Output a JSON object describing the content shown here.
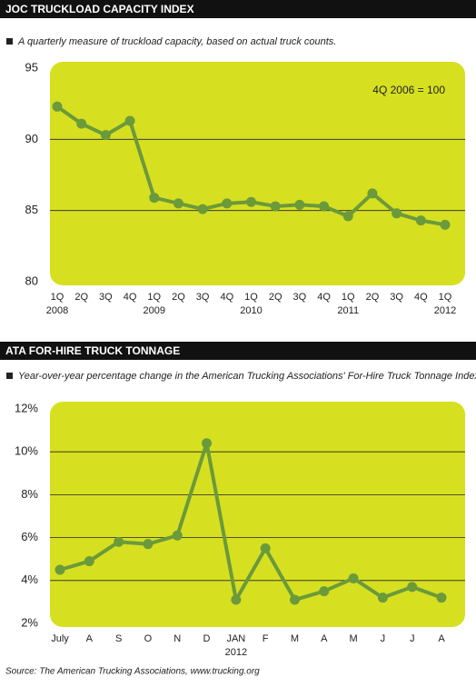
{
  "chart_data": [
    {
      "type": "line",
      "title": "JOC TRUCKLOAD CAPACITY INDEX",
      "subtitle": "A quarterly measure of truckload capacity, based on actual truck counts.",
      "annotation": "4Q 2006 = 100",
      "categories": [
        "1Q",
        "2Q",
        "3Q",
        "4Q",
        "1Q",
        "2Q",
        "3Q",
        "4Q",
        "1Q",
        "2Q",
        "3Q",
        "4Q",
        "1Q",
        "2Q",
        "3Q",
        "4Q",
        "1Q"
      ],
      "year_labels": [
        "2008",
        null,
        null,
        null,
        "2009",
        null,
        null,
        null,
        "2010",
        null,
        null,
        null,
        "2011",
        null,
        null,
        null,
        "2012"
      ],
      "values": [
        92.3,
        91.1,
        90.3,
        91.3,
        85.9,
        85.5,
        85.1,
        85.5,
        85.6,
        85.3,
        85.4,
        85.3,
        84.6,
        86.2,
        84.8,
        84.3,
        84.0
      ],
      "color": "#6b9a3a",
      "ylim": [
        80,
        95
      ],
      "yticks": [
        80,
        85,
        90,
        95
      ],
      "grid": true
    },
    {
      "type": "line",
      "title": "ATA FOR-HIRE TRUCK TONNAGE",
      "subtitle": "Year-over-year percentage change in the American Trucking Associations' For-Hire Truck Tonnage Index.",
      "categories": [
        "July",
        "A",
        "S",
        "O",
        "N",
        "D",
        "JAN",
        "F",
        "M",
        "A",
        "M",
        "J",
        "J",
        "A"
      ],
      "year_labels": [
        null,
        null,
        null,
        null,
        null,
        null,
        "2012",
        null,
        null,
        null,
        null,
        null,
        null,
        null
      ],
      "values": [
        4.5,
        4.9,
        5.8,
        5.7,
        6.1,
        10.4,
        3.1,
        5.5,
        3.1,
        3.5,
        4.1,
        3.2,
        3.7,
        3.2
      ],
      "color": "#6b9a3a",
      "ylim": [
        2,
        12
      ],
      "yticks": [
        {
          "value": 2,
          "label": "2%"
        },
        {
          "value": 4,
          "label": "4%"
        },
        {
          "value": 6,
          "label": "6%"
        },
        {
          "value": 8,
          "label": "8%"
        },
        {
          "value": 10,
          "label": "10%"
        },
        {
          "value": 12,
          "label": "12%"
        }
      ],
      "grid": true
    }
  ],
  "source": "Source: The American Trucking Associations, www.trucking.org"
}
